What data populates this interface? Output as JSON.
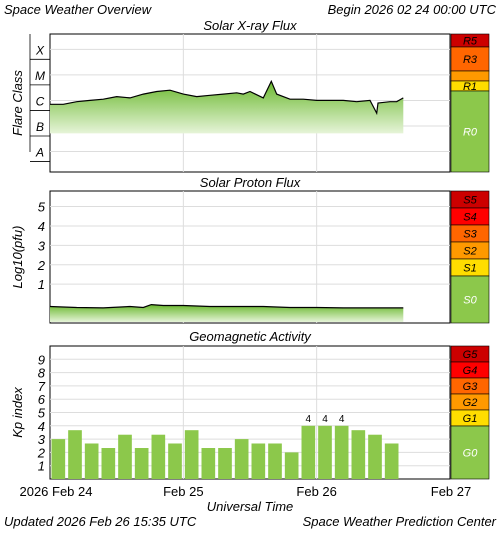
{
  "header": {
    "left": "Space Weather Overview",
    "right": "Begin 2026 02 24 00:00 UTC"
  },
  "footer": {
    "left": "Updated 2026 Feb 26 15:35 UTC",
    "right": "Space Weather Prediction Center"
  },
  "colors": {
    "trace": "#000000",
    "fill_top": "#6ab82e",
    "fill_bottom": "#e6f4d8",
    "bar": "#8cc84b",
    "band_green": "#8cc84b",
    "band_yellow": "#ffdd00",
    "band_orange": "#ff9900",
    "band_orange2": "#ff6600",
    "band_red": "#ff0000",
    "band_darkred": "#cc0000",
    "grid": "#dddddd"
  },
  "chart_data": [
    {
      "type": "area",
      "title": "Solar X-ray Flux",
      "ylabel": "Flare Class",
      "scale": "log",
      "y_ticks": [
        "A",
        "B",
        "C",
        "M",
        "X"
      ],
      "x_range_days": [
        0,
        3
      ],
      "series": [
        {
          "points": [
            [
              0.0,
              -6.15
            ],
            [
              0.1,
              -6.15
            ],
            [
              0.2,
              -6.05
            ],
            [
              0.3,
              -6.0
            ],
            [
              0.4,
              -5.95
            ],
            [
              0.5,
              -5.85
            ],
            [
              0.6,
              -5.9
            ],
            [
              0.7,
              -5.75
            ],
            [
              0.8,
              -5.65
            ],
            [
              0.9,
              -5.6
            ],
            [
              1.0,
              -5.75
            ],
            [
              1.1,
              -5.85
            ],
            [
              1.2,
              -5.8
            ],
            [
              1.3,
              -5.75
            ],
            [
              1.4,
              -5.7
            ],
            [
              1.45,
              -5.75
            ],
            [
              1.5,
              -5.65
            ],
            [
              1.6,
              -5.9
            ],
            [
              1.66,
              -5.25
            ],
            [
              1.7,
              -5.75
            ],
            [
              1.8,
              -5.95
            ],
            [
              1.9,
              -5.95
            ],
            [
              2.0,
              -6.0
            ],
            [
              2.1,
              -6.0
            ],
            [
              2.2,
              -6.0
            ],
            [
              2.3,
              -6.05
            ],
            [
              2.4,
              -6.0
            ],
            [
              2.45,
              -6.5
            ],
            [
              2.46,
              -6.1
            ],
            [
              2.55,
              -6.05
            ],
            [
              2.6,
              -6.05
            ],
            [
              2.65,
              -5.9
            ]
          ]
        }
      ],
      "scale_bands": [
        {
          "label": "R5",
          "color": "#cc0000"
        },
        {
          "label": "R3",
          "color": "#ff6600"
        },
        {
          "label": "R1",
          "color": "#ffdd00"
        },
        {
          "label": "R0",
          "color": "#8cc84b"
        }
      ]
    },
    {
      "type": "area",
      "title": "Solar Proton Flux",
      "ylabel": "Log10(pfu)",
      "y_ticks": [
        1,
        2,
        3,
        4,
        5
      ],
      "ylim": [
        -1.0,
        5.8
      ],
      "x_range_days": [
        0,
        3
      ],
      "series": [
        {
          "points": [
            [
              0.0,
              -0.15
            ],
            [
              0.2,
              -0.2
            ],
            [
              0.4,
              -0.22
            ],
            [
              0.6,
              -0.15
            ],
            [
              0.7,
              -0.2
            ],
            [
              0.76,
              -0.05
            ],
            [
              0.85,
              -0.1
            ],
            [
              1.0,
              -0.1
            ],
            [
              1.2,
              -0.15
            ],
            [
              1.4,
              -0.15
            ],
            [
              1.6,
              -0.15
            ],
            [
              1.8,
              -0.2
            ],
            [
              2.0,
              -0.2
            ],
            [
              2.2,
              -0.22
            ],
            [
              2.4,
              -0.22
            ],
            [
              2.65,
              -0.22
            ]
          ]
        }
      ],
      "scale_bands": [
        {
          "label": "S5",
          "color": "#cc0000"
        },
        {
          "label": "S4",
          "color": "#ff0000"
        },
        {
          "label": "S3",
          "color": "#ff6600"
        },
        {
          "label": "S2",
          "color": "#ff9900"
        },
        {
          "label": "S1",
          "color": "#ffdd00"
        },
        {
          "label": "S0",
          "color": "#8cc84b"
        }
      ]
    },
    {
      "type": "bar",
      "title": "Geomagnetic Activity",
      "ylabel": "Kp index",
      "y_ticks": [
        1,
        2,
        3,
        4,
        5,
        6,
        7,
        8,
        9
      ],
      "ylim": [
        0,
        10
      ],
      "x_range_days": [
        0,
        3
      ],
      "bin_hours": 3,
      "values": [
        3.0,
        3.67,
        2.67,
        2.33,
        3.33,
        2.33,
        3.33,
        2.67,
        3.67,
        2.33,
        2.33,
        3.0,
        2.67,
        2.67,
        2.0,
        4,
        4,
        4,
        3.67,
        3.33,
        2.67
      ],
      "data_labels": [
        "",
        "",
        "",
        "",
        "",
        "",
        "",
        "",
        "",
        "",
        "",
        "",
        "",
        "",
        "",
        "4",
        "4",
        "4",
        "",
        "",
        ""
      ],
      "scale_bands": [
        {
          "label": "G5",
          "color": "#cc0000"
        },
        {
          "label": "G4",
          "color": "#ff0000"
        },
        {
          "label": "G3",
          "color": "#ff6600"
        },
        {
          "label": "G2",
          "color": "#ff9900"
        },
        {
          "label": "G1",
          "color": "#ffdd00"
        },
        {
          "label": "G0",
          "color": "#8cc84b"
        }
      ]
    }
  ],
  "x_axis": {
    "title": "Universal Time",
    "tick_labels": [
      "2026 Feb 24",
      "Feb 25",
      "Feb 26",
      "Feb 27"
    ]
  }
}
